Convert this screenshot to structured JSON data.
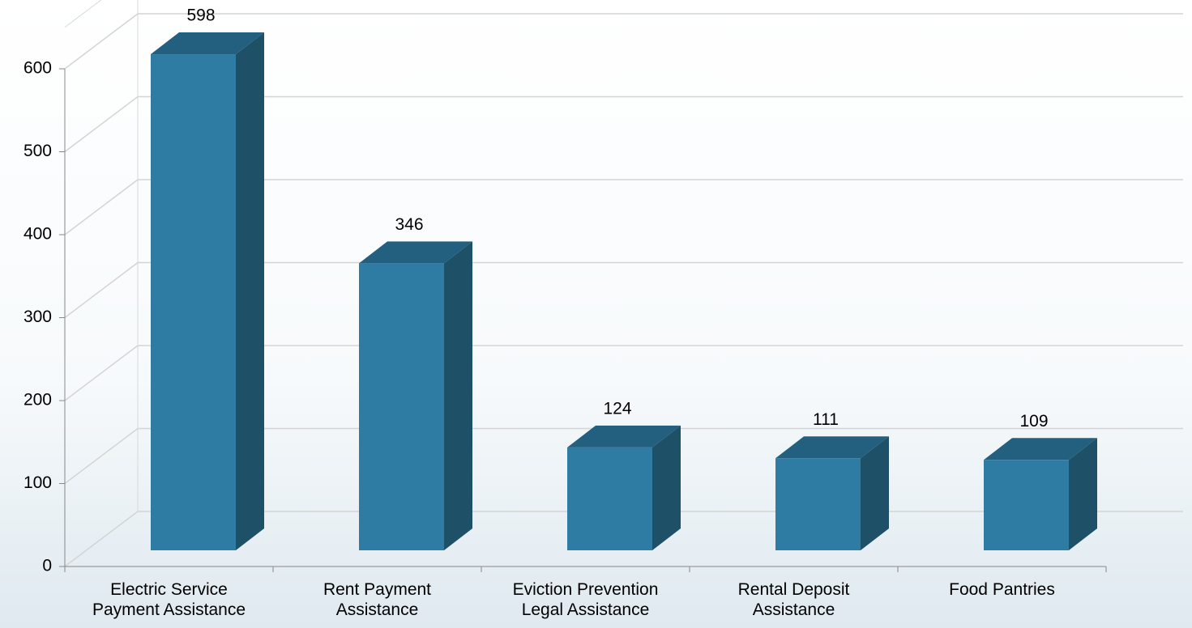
{
  "chart_data": {
    "type": "bar3d",
    "categories": [
      "Electric Service\nPayment Assistance",
      "Rent Payment\nAssistance",
      "Eviction Prevention\nLegal Assistance",
      "Rental Deposit\nAssistance",
      "Food Pantries"
    ],
    "values": [
      598,
      346,
      124,
      111,
      109
    ],
    "color": "#2e7ca3",
    "ylim": [
      0,
      650
    ],
    "yticks": [
      0,
      100,
      200,
      300,
      400,
      500,
      600
    ],
    "grid": true
  }
}
